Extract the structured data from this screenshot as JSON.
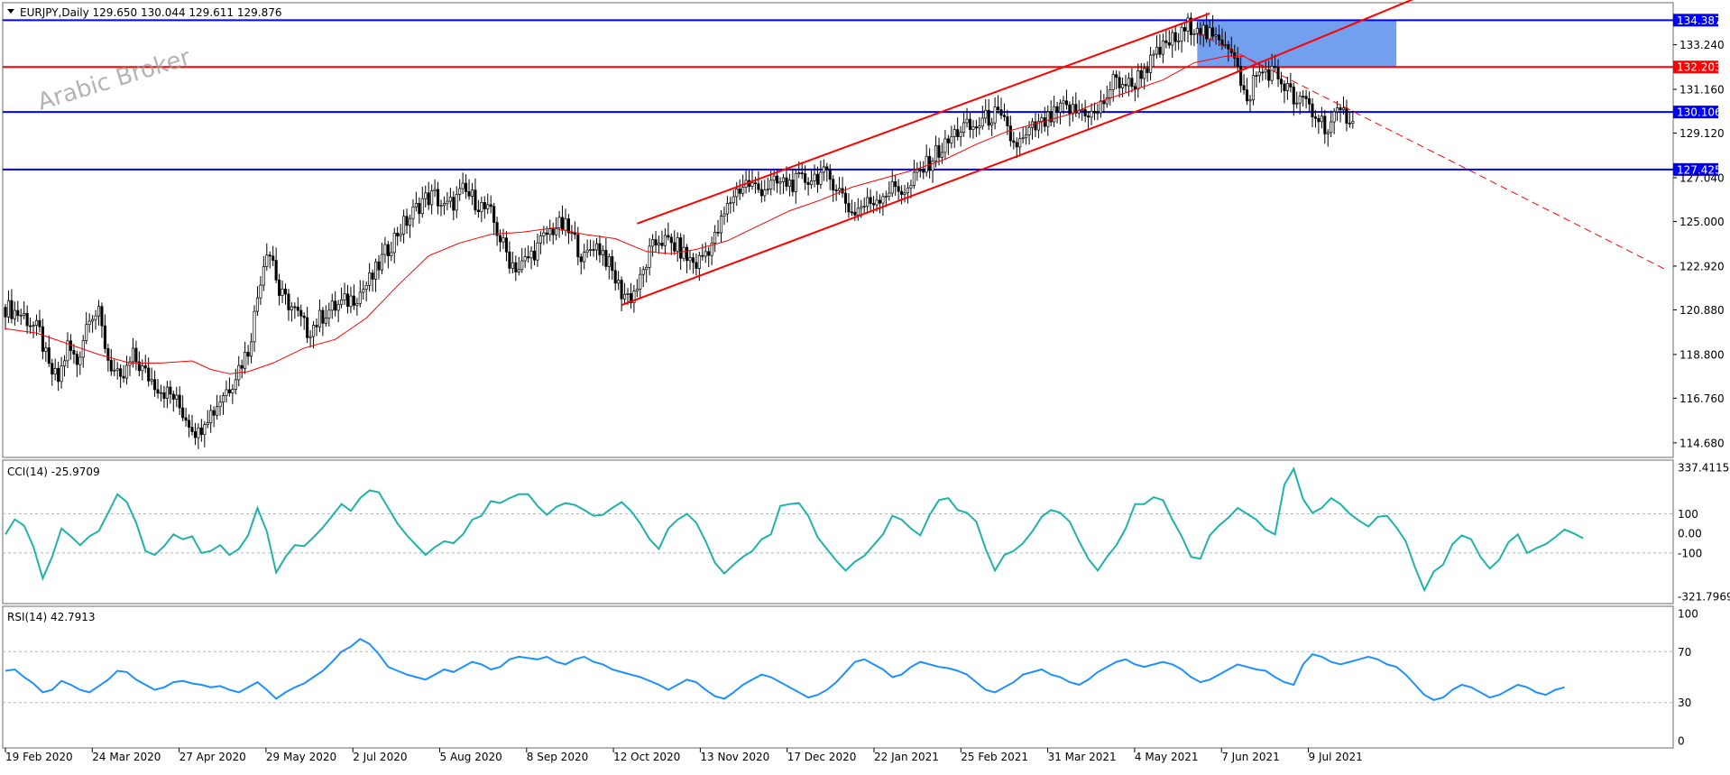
{
  "header": {
    "symbol_line": "EURJPY,Daily  129.650 130.044 129.611 129.876"
  },
  "watermark": "Arabic Broker",
  "chart_data": [
    {
      "type": "candlestick",
      "panel": "price",
      "ylim": [
        114.0,
        135.2
      ],
      "y_ticks": [
        134.387,
        133.24,
        131.16,
        129.12,
        127.04,
        125.0,
        122.92,
        120.88,
        118.8,
        116.76,
        114.68
      ],
      "y_tick_labels": [
        "134.387",
        "133.240",
        "132.203",
        "131.160",
        "130.106",
        "129.120",
        "127.425",
        "127.040",
        "125.000",
        "122.920",
        "120.880",
        "118.800",
        "116.760",
        "114.680"
      ],
      "x_tick_labels": [
        "19 Feb 2020",
        "24 Mar 2020",
        "27 Apr 2020",
        "29 May 2020",
        "2 Jul 2020",
        "5 Aug 2020",
        "8 Sep 2020",
        "12 Oct 2020",
        "13 Nov 2020",
        "17 Dec 2020",
        "22 Jan 2021",
        "25 Feb 2021",
        "31 Mar 2021",
        "4 May 2021",
        "7 Jun 2021",
        "9 Jul 2021"
      ],
      "close_path": [
        [
          0,
          121.0
        ],
        [
          6,
          120.6
        ],
        [
          11,
          119.8
        ],
        [
          14,
          118.1
        ],
        [
          17,
          117.6
        ],
        [
          20,
          119.2
        ],
        [
          23,
          118.4
        ],
        [
          27,
          120.8
        ],
        [
          30,
          120.6
        ],
        [
          33,
          118.6
        ],
        [
          37,
          117.4
        ],
        [
          41,
          118.7
        ],
        [
          45,
          117.9
        ],
        [
          50,
          117.2
        ],
        [
          54,
          116.8
        ],
        [
          57,
          116.1
        ],
        [
          60,
          115.5
        ],
        [
          62,
          115.1
        ],
        [
          64,
          115.9
        ],
        [
          67,
          116.2
        ],
        [
          70,
          117.0
        ],
        [
          72,
          117.3
        ],
        [
          75,
          118.2
        ],
        [
          78,
          119.0
        ],
        [
          80,
          120.6
        ],
        [
          82,
          122.4
        ],
        [
          84,
          123.8
        ],
        [
          86,
          123.2
        ],
        [
          88,
          121.6
        ],
        [
          91,
          121.2
        ],
        [
          94,
          120.6
        ],
        [
          97,
          119.9
        ],
        [
          100,
          120.3
        ],
        [
          103,
          120.8
        ],
        [
          106,
          121.0
        ],
        [
          110,
          121.3
        ],
        [
          114,
          121.7
        ],
        [
          118,
          122.4
        ],
        [
          122,
          123.5
        ],
        [
          126,
          124.5
        ],
        [
          130,
          125.2
        ],
        [
          134,
          126.0
        ],
        [
          138,
          126.2
        ],
        [
          141,
          125.6
        ],
        [
          144,
          125.9
        ],
        [
          147,
          126.4
        ],
        [
          150,
          126.1
        ],
        [
          153,
          125.7
        ],
        [
          156,
          125.3
        ],
        [
          159,
          124.2
        ],
        [
          162,
          123.2
        ],
        [
          165,
          122.8
        ],
        [
          168,
          123.3
        ],
        [
          171,
          123.8
        ],
        [
          174,
          124.4
        ],
        [
          177,
          124.8
        ],
        [
          180,
          124.7
        ],
        [
          183,
          124.1
        ],
        [
          186,
          123.2
        ],
        [
          189,
          124.0
        ],
        [
          192,
          123.6
        ],
        [
          195,
          122.6
        ],
        [
          198,
          121.7
        ],
        [
          201,
          121.5
        ],
        [
          204,
          122.2
        ],
        [
          207,
          123.5
        ],
        [
          210,
          124.2
        ],
        [
          213,
          124.0
        ],
        [
          216,
          123.8
        ],
        [
          219,
          123.3
        ],
        [
          222,
          123.0
        ],
        [
          225,
          123.6
        ],
        [
          228,
          124.2
        ],
        [
          231,
          125.3
        ],
        [
          234,
          126.3
        ],
        [
          238,
          126.8
        ],
        [
          242,
          126.5
        ],
        [
          246,
          126.7
        ],
        [
          250,
          126.8
        ],
        [
          254,
          126.8
        ],
        [
          258,
          127.0
        ],
        [
          262,
          127.2
        ],
        [
          266,
          126.9
        ],
        [
          269,
          126.2
        ],
        [
          272,
          125.4
        ],
        [
          275,
          125.7
        ],
        [
          278,
          125.9
        ],
        [
          282,
          126.3
        ],
        [
          286,
          126.6
        ],
        [
          290,
          126.4
        ],
        [
          293,
          127.2
        ],
        [
          296,
          127.6
        ],
        [
          299,
          128.2
        ],
        [
          302,
          128.5
        ],
        [
          305,
          129.1
        ],
        [
          308,
          129.4
        ],
        [
          311,
          129.3
        ],
        [
          314,
          129.7
        ],
        [
          318,
          130.0
        ],
        [
          321,
          129.5
        ],
        [
          324,
          128.6
        ],
        [
          327,
          128.7
        ],
        [
          330,
          129.3
        ],
        [
          333,
          129.5
        ],
        [
          336,
          129.8
        ],
        [
          340,
          130.3
        ],
        [
          344,
          130.1
        ],
        [
          347,
          130.2
        ],
        [
          350,
          129.9
        ],
        [
          353,
          130.6
        ],
        [
          356,
          131.5
        ],
        [
          359,
          131.5
        ],
        [
          362,
          131.3
        ],
        [
          365,
          132.0
        ],
        [
          368,
          132.4
        ],
        [
          371,
          132.9
        ],
        [
          374,
          133.4
        ],
        [
          377,
          133.5
        ],
        [
          380,
          134.1
        ],
        [
          383,
          134.2
        ],
        [
          386,
          133.7
        ],
        [
          389,
          133.4
        ],
        [
          392,
          133.5
        ],
        [
          395,
          132.9
        ],
        [
          397,
          131.3
        ],
        [
          399,
          130.4
        ],
        [
          401,
          131.6
        ],
        [
          404,
          132.0
        ],
        [
          407,
          132.0
        ],
        [
          409,
          131.7
        ],
        [
          412,
          131.2
        ],
        [
          415,
          130.4
        ],
        [
          418,
          130.7
        ],
        [
          420,
          130.0
        ],
        [
          423,
          129.7
        ],
        [
          425,
          129.3
        ],
        [
          427,
          129.8
        ],
        [
          430,
          130.0
        ],
        [
          433,
          129.9
        ]
      ],
      "sma_path": [
        [
          0,
          120.0
        ],
        [
          10,
          119.8
        ],
        [
          20,
          119.3
        ],
        [
          30,
          118.8
        ],
        [
          40,
          118.4
        ],
        [
          50,
          118.4
        ],
        [
          60,
          118.5
        ],
        [
          66,
          118.1
        ],
        [
          72,
          117.9
        ],
        [
          78,
          118.0
        ],
        [
          86,
          118.4
        ],
        [
          96,
          119.1
        ],
        [
          106,
          119.5
        ],
        [
          116,
          120.5
        ],
        [
          126,
          122.0
        ],
        [
          136,
          123.4
        ],
        [
          146,
          124.0
        ],
        [
          156,
          124.4
        ],
        [
          166,
          124.5
        ],
        [
          176,
          124.7
        ],
        [
          186,
          124.4
        ],
        [
          196,
          124.2
        ],
        [
          206,
          123.6
        ],
        [
          214,
          123.5
        ],
        [
          222,
          123.7
        ],
        [
          232,
          124.1
        ],
        [
          242,
          124.8
        ],
        [
          252,
          125.5
        ],
        [
          262,
          126.0
        ],
        [
          272,
          126.6
        ],
        [
          282,
          127.0
        ],
        [
          292,
          127.4
        ],
        [
          302,
          127.9
        ],
        [
          312,
          128.6
        ],
        [
          322,
          129.2
        ],
        [
          332,
          129.6
        ],
        [
          342,
          130.0
        ],
        [
          352,
          130.6
        ],
        [
          362,
          131.1
        ],
        [
          372,
          131.6
        ],
        [
          382,
          132.4
        ],
        [
          392,
          132.7
        ],
        [
          398,
          132.7
        ],
        [
          404,
          132.2
        ]
      ],
      "horizontal_levels": [
        {
          "value": 134.387,
          "color": "#0000ff",
          "label": "134.387"
        },
        {
          "value": 132.203,
          "color": "#ff0000",
          "label": "132.203"
        },
        {
          "value": 130.106,
          "color": "#0000ff",
          "label": "130.106"
        },
        {
          "value": 127.425,
          "color": "#0000ff",
          "label": "127.425"
        }
      ],
      "trend_channel": {
        "color": "#ff0000",
        "lower": [
          [
            198,
            121.1
          ],
          [
            383,
            131.2
          ]
        ],
        "upper": [
          [
            203,
            124.9
          ],
          [
            387,
            134.7
          ]
        ],
        "projection": [
          [
            383,
            131.2
          ],
          [
            453,
            135.4
          ]
        ]
      },
      "down_trendline": [
        [
          383,
          133.8
        ],
        [
          533,
          122.8
        ]
      ],
      "zone": {
        "from_day": 383,
        "to_day": 447,
        "top": 134.387,
        "bottom": 132.203,
        "color": "#6495ed"
      },
      "colors": {
        "candle": "#000000",
        "sma": "#ff0000"
      }
    },
    {
      "type": "line",
      "panel": "CCI",
      "label": "CCI(14) -25.9709",
      "ylim": [
        -321.7969,
        337.4115
      ],
      "y_tick_labels": [
        "337.4115",
        "100",
        "0.00",
        "-100",
        "-321.7969"
      ],
      "levels": [
        100,
        -100
      ],
      "color": "#20b2aa",
      "values": [
        -5,
        72,
        40,
        -68,
        -230,
        -120,
        25,
        -15,
        -60,
        -15,
        12,
        105,
        200,
        160,
        55,
        -90,
        -110,
        -65,
        -5,
        -30,
        -15,
        -100,
        -90,
        -60,
        -110,
        -80,
        -10,
        130,
        10,
        -200,
        -120,
        -60,
        -65,
        -20,
        30,
        90,
        150,
        115,
        180,
        220,
        210,
        130,
        50,
        -10,
        -60,
        -110,
        -70,
        -40,
        -50,
        -5,
        70,
        90,
        165,
        155,
        180,
        200,
        200,
        140,
        95,
        135,
        155,
        145,
        120,
        90,
        95,
        130,
        160,
        115,
        50,
        -30,
        -80,
        25,
        70,
        100,
        55,
        -40,
        -150,
        -205,
        -160,
        -120,
        -90,
        -30,
        -5,
        140,
        150,
        155,
        90,
        -20,
        -80,
        -140,
        -190,
        -145,
        -115,
        -60,
        -5,
        90,
        70,
        25,
        -10,
        95,
        170,
        180,
        120,
        105,
        60,
        -80,
        -190,
        -110,
        -90,
        -50,
        10,
        85,
        120,
        105,
        60,
        -40,
        -130,
        -190,
        -120,
        -60,
        25,
        150,
        150,
        185,
        170,
        70,
        -15,
        -120,
        -130,
        -10,
        40,
        80,
        130,
        100,
        70,
        20,
        -5,
        250,
        330,
        175,
        105,
        130,
        180,
        150,
        100,
        65,
        35,
        85,
        90,
        30,
        -40,
        -175,
        -290,
        -195,
        -160,
        -55,
        -10,
        -30,
        -120,
        -180,
        -135,
        -45,
        -5,
        -100,
        -75,
        -55,
        -20,
        20,
        0,
        -25
      ],
      "day_step": 3
    },
    {
      "type": "line",
      "panel": "RSI",
      "label": "RSI(14) 42.7913",
      "ylim": [
        0,
        100
      ],
      "y_tick_labels": [
        "100",
        "70",
        "30",
        "0"
      ],
      "levels": [
        70,
        30
      ],
      "color": "#1e90ff",
      "values": [
        55,
        56,
        50,
        45,
        38,
        40,
        47,
        44,
        40,
        38,
        43,
        48,
        55,
        54,
        48,
        44,
        40,
        42,
        46,
        47,
        45,
        44,
        42,
        43,
        40,
        38,
        42,
        46,
        40,
        33,
        38,
        42,
        45,
        50,
        55,
        62,
        70,
        74,
        80,
        76,
        68,
        58,
        55,
        52,
        50,
        48,
        52,
        56,
        54,
        58,
        62,
        60,
        56,
        58,
        64,
        66,
        65,
        64,
        66,
        62,
        60,
        64,
        66,
        62,
        60,
        56,
        54,
        52,
        50,
        47,
        44,
        40,
        44,
        48,
        46,
        40,
        35,
        33,
        38,
        44,
        48,
        52,
        50,
        46,
        42,
        38,
        34,
        36,
        40,
        46,
        54,
        62,
        64,
        60,
        56,
        50,
        52,
        58,
        62,
        60,
        58,
        57,
        55,
        52,
        46,
        40,
        38,
        42,
        46,
        52,
        54,
        56,
        52,
        50,
        46,
        44,
        48,
        54,
        58,
        62,
        64,
        60,
        58,
        60,
        62,
        60,
        56,
        50,
        46,
        48,
        52,
        56,
        60,
        58,
        56,
        55,
        50,
        46,
        44,
        60,
        68,
        66,
        62,
        60,
        62,
        64,
        66,
        64,
        60,
        58,
        52,
        44,
        36,
        32,
        34,
        40,
        44,
        42,
        38,
        34,
        36,
        40,
        44,
        42,
        38,
        36,
        40,
        42
      ],
      "day_step": 3
    }
  ]
}
